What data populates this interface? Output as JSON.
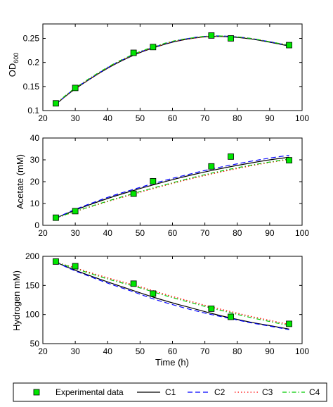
{
  "chart_data": [
    {
      "type": "line",
      "title": "",
      "xlabel": "",
      "ylabel": "OD",
      "ylabel_subscript": "600",
      "xlim": [
        20,
        100
      ],
      "ylim": [
        0.1,
        0.28
      ],
      "xticks": [
        "20",
        "30",
        "40",
        "50",
        "60",
        "70",
        "80",
        "90",
        "100"
      ],
      "yticks": [
        "0.1",
        "0.15",
        "0.2",
        "0.25"
      ],
      "grid": false,
      "experimental": {
        "x": [
          24,
          30,
          48,
          54,
          72,
          78,
          96
        ],
        "y": [
          0.115,
          0.147,
          0.22,
          0.232,
          0.256,
          0.25,
          0.236
        ]
      },
      "series": [
        {
          "name": "C1",
          "x": [
            24,
            30,
            40,
            48,
            54,
            60,
            66,
            72,
            78,
            84,
            90,
            96
          ],
          "y": [
            0.113,
            0.145,
            0.188,
            0.215,
            0.23,
            0.242,
            0.25,
            0.254,
            0.253,
            0.249,
            0.242,
            0.234
          ]
        },
        {
          "name": "C2",
          "x": [
            24,
            30,
            40,
            48,
            54,
            60,
            66,
            72,
            78,
            84,
            90,
            96
          ],
          "y": [
            0.113,
            0.146,
            0.189,
            0.216,
            0.231,
            0.243,
            0.251,
            0.255,
            0.254,
            0.25,
            0.243,
            0.235
          ]
        },
        {
          "name": "C3",
          "x": [
            24,
            30,
            40,
            48,
            54,
            60,
            66,
            72,
            78,
            84,
            90,
            96
          ],
          "y": [
            0.114,
            0.146,
            0.189,
            0.216,
            0.231,
            0.243,
            0.25,
            0.254,
            0.254,
            0.25,
            0.243,
            0.236
          ]
        },
        {
          "name": "C4",
          "x": [
            24,
            30,
            40,
            48,
            54,
            60,
            66,
            72,
            78,
            84,
            90,
            96
          ],
          "y": [
            0.114,
            0.147,
            0.19,
            0.217,
            0.232,
            0.244,
            0.251,
            0.255,
            0.254,
            0.25,
            0.243,
            0.236
          ]
        }
      ]
    },
    {
      "type": "line",
      "title": "",
      "xlabel": "",
      "ylabel": "Acetate (mM)",
      "xlim": [
        20,
        100
      ],
      "ylim": [
        0,
        40
      ],
      "xticks": [
        "20",
        "30",
        "40",
        "50",
        "60",
        "70",
        "80",
        "90",
        "100"
      ],
      "yticks": [
        "0",
        "10",
        "20",
        "30",
        "40"
      ],
      "grid": false,
      "experimental": {
        "x": [
          24,
          30,
          48,
          54,
          72,
          78,
          96
        ],
        "y": [
          3.5,
          6.5,
          14.5,
          20.2,
          27.0,
          31.5,
          29.8
        ]
      },
      "series": [
        {
          "name": "C1",
          "x": [
            24,
            30,
            40,
            48,
            54,
            60,
            66,
            72,
            78,
            84,
            90,
            96
          ],
          "y": [
            3.3,
            7.0,
            12.3,
            16.0,
            18.5,
            20.9,
            23.1,
            25.1,
            26.9,
            28.5,
            30.0,
            31.2
          ]
        },
        {
          "name": "C2",
          "x": [
            24,
            30,
            40,
            48,
            54,
            60,
            66,
            72,
            78,
            84,
            90,
            96
          ],
          "y": [
            3.3,
            7.3,
            12.8,
            16.5,
            19.1,
            21.5,
            23.7,
            25.8,
            27.6,
            29.3,
            30.8,
            32.1
          ]
        },
        {
          "name": "C3",
          "x": [
            24,
            30,
            40,
            48,
            54,
            60,
            66,
            72,
            78,
            84,
            90,
            96
          ],
          "y": [
            3.3,
            6.3,
            10.9,
            14.3,
            16.8,
            19.2,
            21.4,
            23.5,
            25.4,
            27.2,
            28.8,
            30.2
          ]
        },
        {
          "name": "C4",
          "x": [
            24,
            30,
            40,
            48,
            54,
            60,
            66,
            72,
            78,
            84,
            90,
            96
          ],
          "y": [
            3.3,
            6.4,
            11.1,
            14.6,
            17.1,
            19.5,
            21.8,
            23.9,
            25.8,
            27.5,
            29.0,
            30.4
          ]
        }
      ]
    },
    {
      "type": "line",
      "title": "",
      "xlabel": "Time (h)",
      "ylabel": "Hydrogen mM)",
      "xlim": [
        20,
        100
      ],
      "ylim": [
        50,
        200
      ],
      "xticks": [
        "20",
        "30",
        "40",
        "50",
        "60",
        "70",
        "80",
        "90",
        "100"
      ],
      "yticks": [
        "50",
        "100",
        "150",
        "200"
      ],
      "grid": false,
      "experimental": {
        "x": [
          24,
          30,
          48,
          54,
          72,
          78,
          96
        ],
        "y": [
          191,
          183,
          153,
          136,
          110,
          96,
          84
        ]
      },
      "series": [
        {
          "name": "C1",
          "x": [
            24,
            30,
            40,
            48,
            54,
            60,
            66,
            72,
            78,
            84,
            90,
            96
          ],
          "y": [
            190,
            176,
            156,
            141,
            130,
            120,
            111,
            102,
            94,
            87,
            81,
            75
          ]
        },
        {
          "name": "C2",
          "x": [
            24,
            30,
            40,
            48,
            54,
            60,
            66,
            72,
            78,
            84,
            90,
            96
          ],
          "y": [
            190,
            175,
            154,
            139,
            127,
            117,
            108,
            100,
            93,
            86,
            80,
            74
          ]
        },
        {
          "name": "C3",
          "x": [
            24,
            30,
            40,
            48,
            54,
            60,
            66,
            72,
            78,
            84,
            90,
            96
          ],
          "y": [
            190,
            180,
            163,
            151,
            141,
            131,
            122,
            113,
            105,
            97,
            90,
            83
          ]
        },
        {
          "name": "C4",
          "x": [
            24,
            30,
            40,
            48,
            54,
            60,
            66,
            72,
            78,
            84,
            90,
            96
          ],
          "y": [
            190,
            179,
            161,
            149,
            139,
            129,
            120,
            111,
            103,
            95,
            88,
            81
          ]
        }
      ]
    }
  ],
  "legend": {
    "placement": "bottom",
    "items": [
      {
        "label": "Experimental data",
        "kind": "marker",
        "color": "#00e600"
      },
      {
        "label": "C1",
        "kind": "line",
        "color": "#000000",
        "dash": "solid"
      },
      {
        "label": "C2",
        "kind": "line",
        "color": "#0000ff",
        "dash": "dashed"
      },
      {
        "label": "C3",
        "kind": "line",
        "color": "#ff0000",
        "dash": "dotted"
      },
      {
        "label": "C4",
        "kind": "line",
        "color": "#00cc00",
        "dash": "dashdot"
      }
    ]
  },
  "colors": {
    "C1": "#000000",
    "C2": "#0000ff",
    "C3": "#ff0000",
    "C4": "#00cc00",
    "marker_fill": "#00e600",
    "marker_edge": "#000000"
  }
}
